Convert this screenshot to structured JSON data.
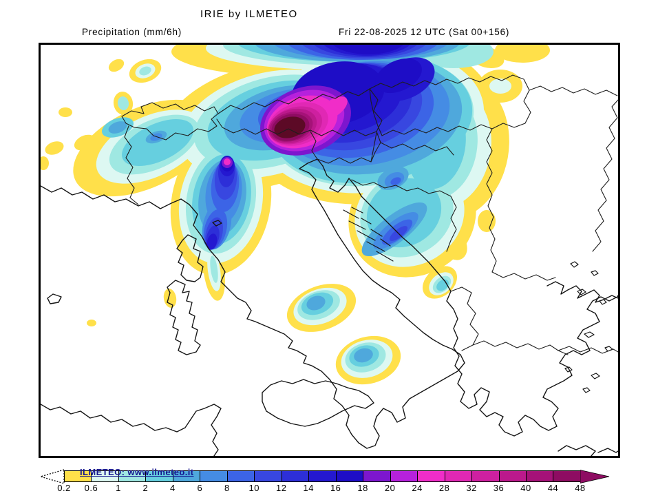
{
  "header": {
    "title": "IRIE by ILMETEO",
    "subtitle_left": "Precipitation (mm/6h)",
    "subtitle_right": "Fri 22-08-2025 12 UTC (Sat 00+156)"
  },
  "watermark": "ILMETEO: www.ilmeteo.it",
  "colorbar": {
    "unit": "mm/6h",
    "labels": [
      "0.2",
      "0.6",
      "1",
      "2",
      "4",
      "6",
      "8",
      "10",
      "12",
      "14",
      "16",
      "18",
      "20",
      "24",
      "28",
      "32",
      "36",
      "40",
      "44",
      "48"
    ],
    "colors": [
      "#FFE04A",
      "#DDF8F2",
      "#9FE8E2",
      "#66CFDF",
      "#4FA8DC",
      "#458CE4",
      "#3C64E6",
      "#3847E0",
      "#2D2FD8",
      "#2418D0",
      "#1E0DC6",
      "#7D16CE",
      "#B621DC",
      "#F02DC8",
      "#E028B4",
      "#CE20A0",
      "#BB198C",
      "#A51278",
      "#8E0C62"
    ],
    "over_color": "#5C0A26",
    "arrow_color": "#8E0C62",
    "underflow_fill": "#FFFFFF"
  },
  "map": {
    "model": "IRIE",
    "variable": "Precipitation",
    "valid_time": "Fri 22-08-2025 12 UTC",
    "forecast_step": "Sat 00+156",
    "region": "Italy and central Mediterranean"
  }
}
